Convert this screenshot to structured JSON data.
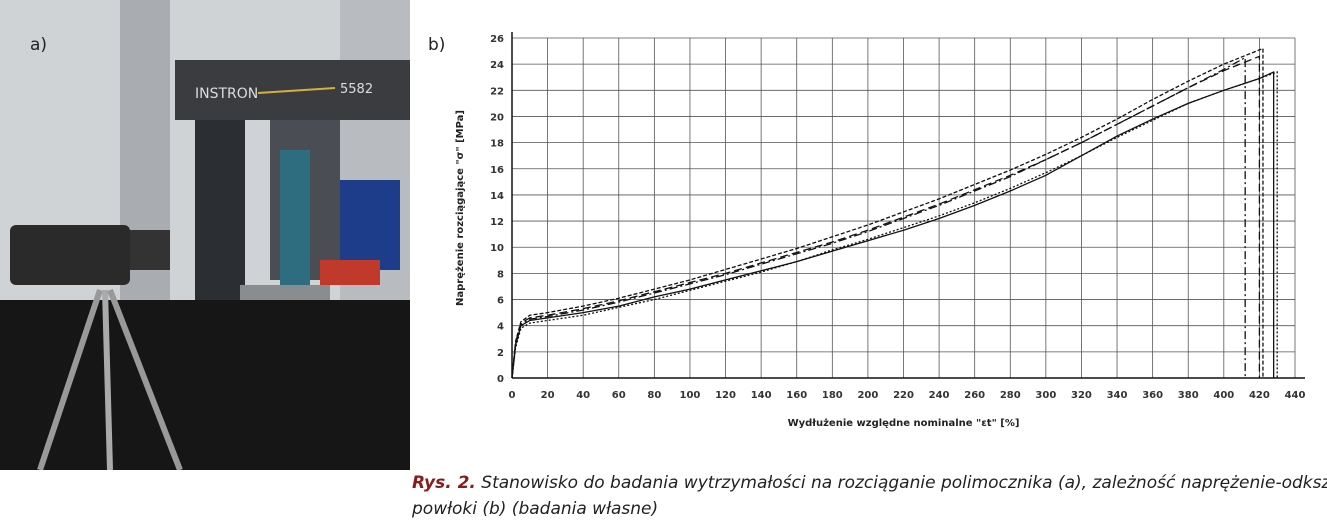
{
  "panel_a": {
    "label": "a)"
  },
  "panel_b": {
    "label": "b)"
  },
  "chart_data": {
    "type": "line",
    "xlabel": "Wydłużenie względne nominalne \"εt\" [%]",
    "ylabel": "Naprężenie rozciągające \"σ\" [MPa]",
    "xlim": [
      0,
      440
    ],
    "ylim": [
      0,
      26
    ],
    "xticks": [
      0,
      20,
      40,
      60,
      80,
      100,
      120,
      140,
      160,
      180,
      200,
      220,
      240,
      260,
      280,
      300,
      320,
      340,
      360,
      380,
      400,
      420,
      440
    ],
    "yticks": [
      0,
      2,
      4,
      6,
      8,
      10,
      12,
      14,
      16,
      18,
      20,
      22,
      24,
      26
    ],
    "grid": true,
    "series": [
      {
        "color": "#111",
        "x": [
          0,
          2,
          5,
          10,
          20,
          40,
          60,
          80,
          100,
          120,
          140,
          160,
          180,
          200,
          220,
          240,
          260,
          280,
          300,
          320,
          340,
          360,
          380,
          400,
          420,
          428,
          428
        ],
        "values": [
          0,
          2.5,
          4,
          4.4,
          4.6,
          5,
          5.5,
          6.2,
          6.8,
          7.5,
          8.2,
          8.9,
          9.7,
          10.5,
          11.3,
          12.2,
          13.2,
          14.3,
          15.5,
          17,
          18.5,
          19.8,
          21,
          22,
          22.9,
          23.4,
          0
        ]
      },
      {
        "color": "#111",
        "x": [
          0,
          2,
          5,
          10,
          20,
          40,
          60,
          80,
          100,
          120,
          140,
          160,
          180,
          200,
          220,
          240,
          260,
          280,
          300,
          320,
          340,
          360,
          380,
          400,
          420,
          420
        ],
        "values": [
          0,
          2.7,
          4.2,
          4.6,
          4.8,
          5.3,
          5.9,
          6.6,
          7.3,
          8,
          8.8,
          9.6,
          10.4,
          11.3,
          12.3,
          13.3,
          14.4,
          15.5,
          16.7,
          18,
          19.4,
          20.8,
          22.2,
          23.5,
          24.6,
          0
        ]
      },
      {
        "color": "#111",
        "x": [
          0,
          2,
          5,
          10,
          20,
          40,
          60,
          80,
          100,
          120,
          140,
          160,
          180,
          200,
          220,
          240,
          260,
          280,
          300,
          320,
          340,
          360,
          380,
          400,
          420,
          430,
          430
        ],
        "values": [
          0,
          2.3,
          3.8,
          4.2,
          4.4,
          4.8,
          5.4,
          6,
          6.7,
          7.4,
          8.1,
          8.9,
          9.8,
          10.6,
          11.5,
          12.4,
          13.4,
          14.5,
          15.7,
          17,
          18.4,
          19.7,
          21,
          22,
          22.9,
          23.4,
          0
        ]
      },
      {
        "color": "#111",
        "x": [
          0,
          2,
          5,
          10,
          20,
          40,
          60,
          80,
          100,
          120,
          140,
          160,
          180,
          200,
          220,
          240,
          260,
          280,
          300,
          320,
          340,
          360,
          380,
          400,
          412,
          412
        ],
        "values": [
          0,
          2.6,
          4.1,
          4.5,
          4.7,
          5.2,
          5.8,
          6.5,
          7.2,
          7.9,
          8.7,
          9.5,
          10.3,
          11.2,
          12.2,
          13.2,
          14.3,
          15.4,
          16.7,
          18,
          19.4,
          20.8,
          22.2,
          23.6,
          24.5,
          0
        ]
      },
      {
        "color": "#111",
        "x": [
          0,
          2,
          5,
          10,
          20,
          40,
          60,
          80,
          100,
          120,
          140,
          160,
          180,
          200,
          220,
          240,
          260,
          280,
          300,
          320,
          340,
          360,
          380,
          400,
          422,
          422
        ],
        "values": [
          0,
          2.8,
          4.3,
          4.8,
          5,
          5.5,
          6.1,
          6.8,
          7.5,
          8.3,
          9.1,
          9.9,
          10.8,
          11.7,
          12.7,
          13.7,
          14.8,
          15.9,
          17.1,
          18.4,
          19.8,
          21.3,
          22.7,
          24,
          25.2,
          0
        ]
      }
    ]
  },
  "caption": {
    "label": "Rys. 2.",
    "text": "Stanowisko do badania wytrzymałości na rozciąganie polimocznika (a), zależność naprężenie-odkształcenie powłoki (b) (badania własne)"
  }
}
